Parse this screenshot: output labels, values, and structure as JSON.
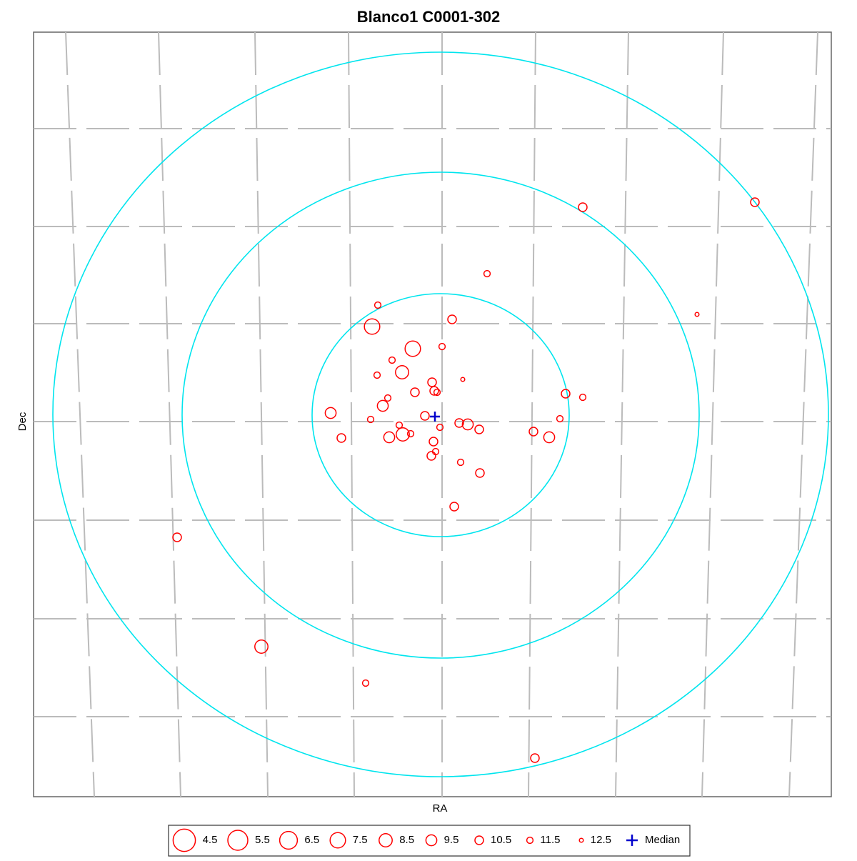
{
  "chart_data": {
    "type": "scatter",
    "title": "Blanco1  C0001-302",
    "x_label": "RA",
    "y_label": "Dec",
    "xlim": [
      0,
      1117
    ],
    "ylim": [
      0,
      1070
    ],
    "x": [
      769,
      1010,
      635,
      482,
      929,
      586,
      474,
      531,
      572,
      502,
      516,
      481,
      601,
      558,
      561,
      565,
      534,
      496,
      745,
      769,
      489,
      416,
      548,
      472,
      737,
      512,
      569,
      596,
      608,
      624,
      700,
      517,
      498,
      528,
      431,
      722,
      560,
      563,
      557,
      598,
      625,
      589,
      201,
      319,
      465,
      702
    ],
    "y": [
      245,
      238,
      338,
      382,
      395,
      402,
      412,
      443,
      440,
      459,
      476,
      480,
      486,
      490,
      502,
      504,
      504,
      512,
      506,
      511,
      523,
      533,
      537,
      542,
      541,
      550,
      553,
      547,
      549,
      556,
      559,
      563,
      567,
      562,
      568,
      567,
      573,
      587,
      593,
      602,
      617,
      664,
      707,
      860,
      911,
      1016
    ],
    "magnitudes": [
      10.5,
      10.5,
      11.5,
      11.5,
      12.5,
      10.5,
      7.5,
      7.5,
      11.5,
      11.5,
      8.5,
      11.5,
      12.5,
      10.5,
      10.5,
      11.5,
      10.5,
      11.5,
      10.5,
      11.5,
      9.5,
      9.5,
      10.5,
      11.5,
      11.5,
      11.5,
      11.5,
      10.5,
      9.5,
      10.5,
      10.5,
      8.5,
      9.5,
      11.5,
      10.5,
      9.5,
      10.5,
      11.5,
      10.5,
      11.5,
      10.5,
      10.5,
      10.5,
      8.5,
      11.5,
      10.5
    ],
    "color": "#ff0000",
    "median": {
      "label": "Median",
      "x": 562,
      "y": 538,
      "color": "#0000cc"
    },
    "legend": [
      4.5,
      5.5,
      6.5,
      7.5,
      8.5,
      9.5,
      10.5,
      11.5,
      12.5
    ]
  }
}
